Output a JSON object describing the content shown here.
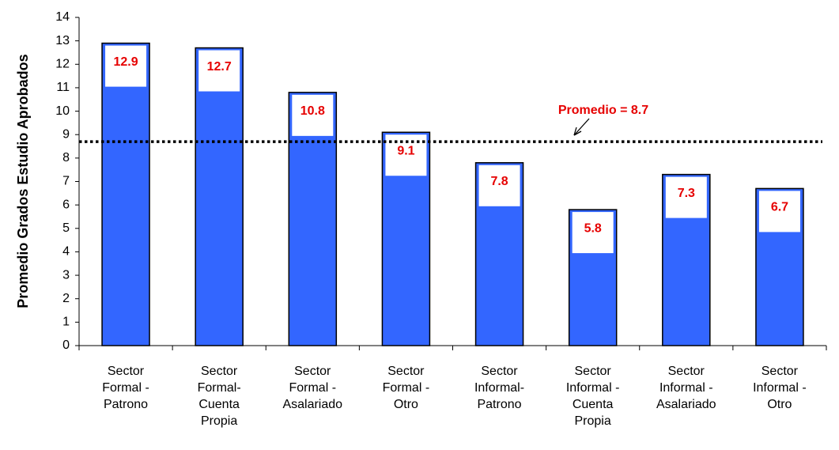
{
  "chart_data": {
    "type": "bar",
    "y_axis_label": "Promedio Grados Estudio Aprobados",
    "categories": [
      "Sector\nFormal -\nPatrono",
      "Sector\nFormal-\nCuenta\nPropia",
      "Sector\nFormal -\nAsalariado",
      "Sector\nFormal -\nOtro",
      "Sector\nInformal-\nPatrono",
      "Sector\nInformal -\nCuenta\nPropia",
      "Sector\nInformal -\nAsalariado",
      "Sector\nInformal -\nOtro"
    ],
    "values": [
      12.9,
      12.7,
      10.8,
      9.1,
      7.8,
      5.8,
      7.3,
      6.7
    ],
    "color": "#3366ff",
    "label_color": "#e60000",
    "ylim": [
      0,
      14
    ],
    "yticks": [
      0,
      1,
      2,
      3,
      4,
      5,
      6,
      7,
      8,
      9,
      10,
      11,
      12,
      13,
      14
    ],
    "grid": false,
    "reference_line": {
      "value": 8.7,
      "label": "Promedio = 8.7"
    }
  }
}
